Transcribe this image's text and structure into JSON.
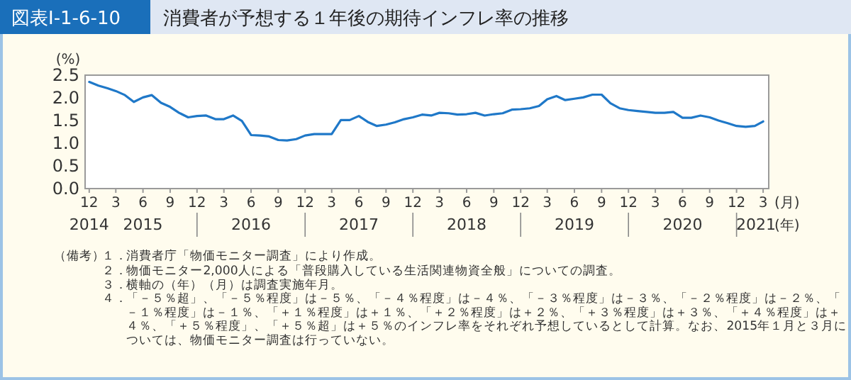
{
  "chart_data": {
    "type": "line",
    "subtitle": "図表Ⅰ-1-6-10",
    "title": "消費者が予想する１年後の期待インフレ率の推移",
    "ylabel": "(%)",
    "xlabel": "(月)",
    "x2label": "(年)",
    "x": [
      "2014-12",
      "2015-01",
      "2015-02",
      "2015-03",
      "2015-04",
      "2015-05",
      "2015-06",
      "2015-07",
      "2015-08",
      "2015-09",
      "2015-10",
      "2015-11",
      "2015-12",
      "2016-01",
      "2016-02",
      "2016-03",
      "2016-04",
      "2016-05",
      "2016-06",
      "2016-07",
      "2016-08",
      "2016-09",
      "2016-10",
      "2016-11",
      "2016-12",
      "2017-01",
      "2017-02",
      "2017-03",
      "2017-04",
      "2017-05",
      "2017-06",
      "2017-07",
      "2017-08",
      "2017-09",
      "2017-10",
      "2017-11",
      "2017-12",
      "2018-01",
      "2018-02",
      "2018-03",
      "2018-04",
      "2018-05",
      "2018-06",
      "2018-07",
      "2018-08",
      "2018-09",
      "2018-10",
      "2018-11",
      "2018-12",
      "2019-01",
      "2019-02",
      "2019-03",
      "2019-04",
      "2019-05",
      "2019-06",
      "2019-07",
      "2019-08",
      "2019-09",
      "2019-10",
      "2019-11",
      "2019-12",
      "2020-01",
      "2020-02",
      "2020-03",
      "2020-04",
      "2020-05",
      "2020-06",
      "2020-07",
      "2020-08",
      "2020-09",
      "2020-10",
      "2020-11",
      "2020-12",
      "2021-01",
      "2021-02",
      "2021-03"
    ],
    "series": [
      {
        "color": "#1f78c8",
        "values": [
          2.35,
          2.27,
          2.21,
          2.15,
          2.06,
          1.91,
          2.01,
          2.06,
          1.89,
          1.8,
          1.67,
          1.57,
          1.6,
          1.61,
          1.53,
          1.53,
          1.61,
          1.49,
          1.18,
          1.17,
          1.15,
          1.07,
          1.06,
          1.09,
          1.17,
          1.2,
          1.2,
          1.2,
          1.51,
          1.51,
          1.6,
          1.47,
          1.38,
          1.41,
          1.46,
          1.53,
          1.57,
          1.63,
          1.61,
          1.67,
          1.66,
          1.63,
          1.64,
          1.67,
          1.61,
          1.64,
          1.66,
          1.74,
          1.75,
          1.77,
          1.82,
          1.97,
          2.04,
          1.95,
          1.98,
          2.01,
          2.07,
          2.07,
          1.88,
          1.77,
          1.73,
          1.71,
          1.69,
          1.67,
          1.67,
          1.69,
          1.56,
          1.56,
          1.61,
          1.57,
          1.5,
          1.44,
          1.38,
          1.36,
          1.38,
          1.48
        ]
      }
    ],
    "xlim": [
      "2014-11-17",
      "2021-03-20"
    ],
    "xticks": [
      {
        "value": "2014-12",
        "label": "12"
      },
      {
        "value": "2015-03",
        "label": "3"
      },
      {
        "value": "2015-06",
        "label": "6"
      },
      {
        "value": "2015-09",
        "label": "9"
      },
      {
        "value": "2015-12",
        "label": "12"
      },
      {
        "value": "2016-03",
        "label": "3"
      },
      {
        "value": "2016-06",
        "label": "6"
      },
      {
        "value": "2016-09",
        "label": "9"
      },
      {
        "value": "2016-12",
        "label": "12"
      },
      {
        "value": "2017-03",
        "label": "3"
      },
      {
        "value": "2017-06",
        "label": "6"
      },
      {
        "value": "2017-09",
        "label": "9"
      },
      {
        "value": "2017-12",
        "label": "12"
      },
      {
        "value": "2018-03",
        "label": "3"
      },
      {
        "value": "2018-06",
        "label": "6"
      },
      {
        "value": "2018-09",
        "label": "9"
      },
      {
        "value": "2018-12",
        "label": "12"
      },
      {
        "value": "2019-03",
        "label": "3"
      },
      {
        "value": "2019-06",
        "label": "6"
      },
      {
        "value": "2019-09",
        "label": "9"
      },
      {
        "value": "2019-12",
        "label": "12"
      },
      {
        "value": "2020-03",
        "label": "3"
      },
      {
        "value": "2020-06",
        "label": "6"
      },
      {
        "value": "2020-09",
        "label": "9"
      },
      {
        "value": "2020-12",
        "label": "12"
      },
      {
        "value": "2021-03",
        "label": "3"
      }
    ],
    "x2lim": [
      "2014-11-17",
      "2021-03-20"
    ],
    "x2ticks": [
      {
        "value": "2014-12",
        "label": "2014"
      },
      {
        "value": "2015-06",
        "label": "2015"
      },
      {
        "value": "2015-12",
        "label": null
      },
      {
        "value": "2016-06",
        "label": "2016"
      },
      {
        "value": "2016-12",
        "label": null
      },
      {
        "value": "2017-06",
        "label": "2017"
      },
      {
        "value": "2017-12",
        "label": null
      },
      {
        "value": "2018-06",
        "label": "2018"
      },
      {
        "value": "2018-12",
        "label": null
      },
      {
        "value": "2019-06",
        "label": "2019"
      },
      {
        "value": "2019-12",
        "label": null
      },
      {
        "value": "2020-06",
        "label": "2020"
      },
      {
        "value": "2020-12",
        "label": null
      },
      {
        "value": "2021-02-05",
        "label": "2021"
      }
    ],
    "ylim": [
      0,
      2.5
    ],
    "yticks": [
      {
        "value": 0,
        "label": "0.0"
      },
      {
        "value": 0.5,
        "label": "0.5"
      },
      {
        "value": 1,
        "label": "1.0"
      },
      {
        "value": 1.5,
        "label": "1.5"
      },
      {
        "value": 2,
        "label": "2.0"
      },
      {
        "value": 2.5,
        "label": "2.5"
      }
    ],
    "annotations": [
      "（備考）",
      "１．消費者庁「物価モニター調査」により作成。",
      "２．物価モニター2,000人による「普段購入している生活関連物資全般」についての調査。",
      "３．横軸の（年）（月）は調査実施年月。",
      "４．「－５％超」、「－５％程度」は－５％、「－４％程度」は－４％、「－３％程度」は－３％、「－２％程度」は－２％、「－１％程度」は－１％、「＋１％程度」は＋１％、「＋２％程度」は＋２％、「＋３％程度」は＋３％、「＋４％程度」は＋４％、「＋５％程度」、「＋５％超」は＋５％のインフレ率をそれぞれ予想しているとして計算。なお、2015年１月と３月については、物価モニター調査は行っていない。"
    ]
  }
}
